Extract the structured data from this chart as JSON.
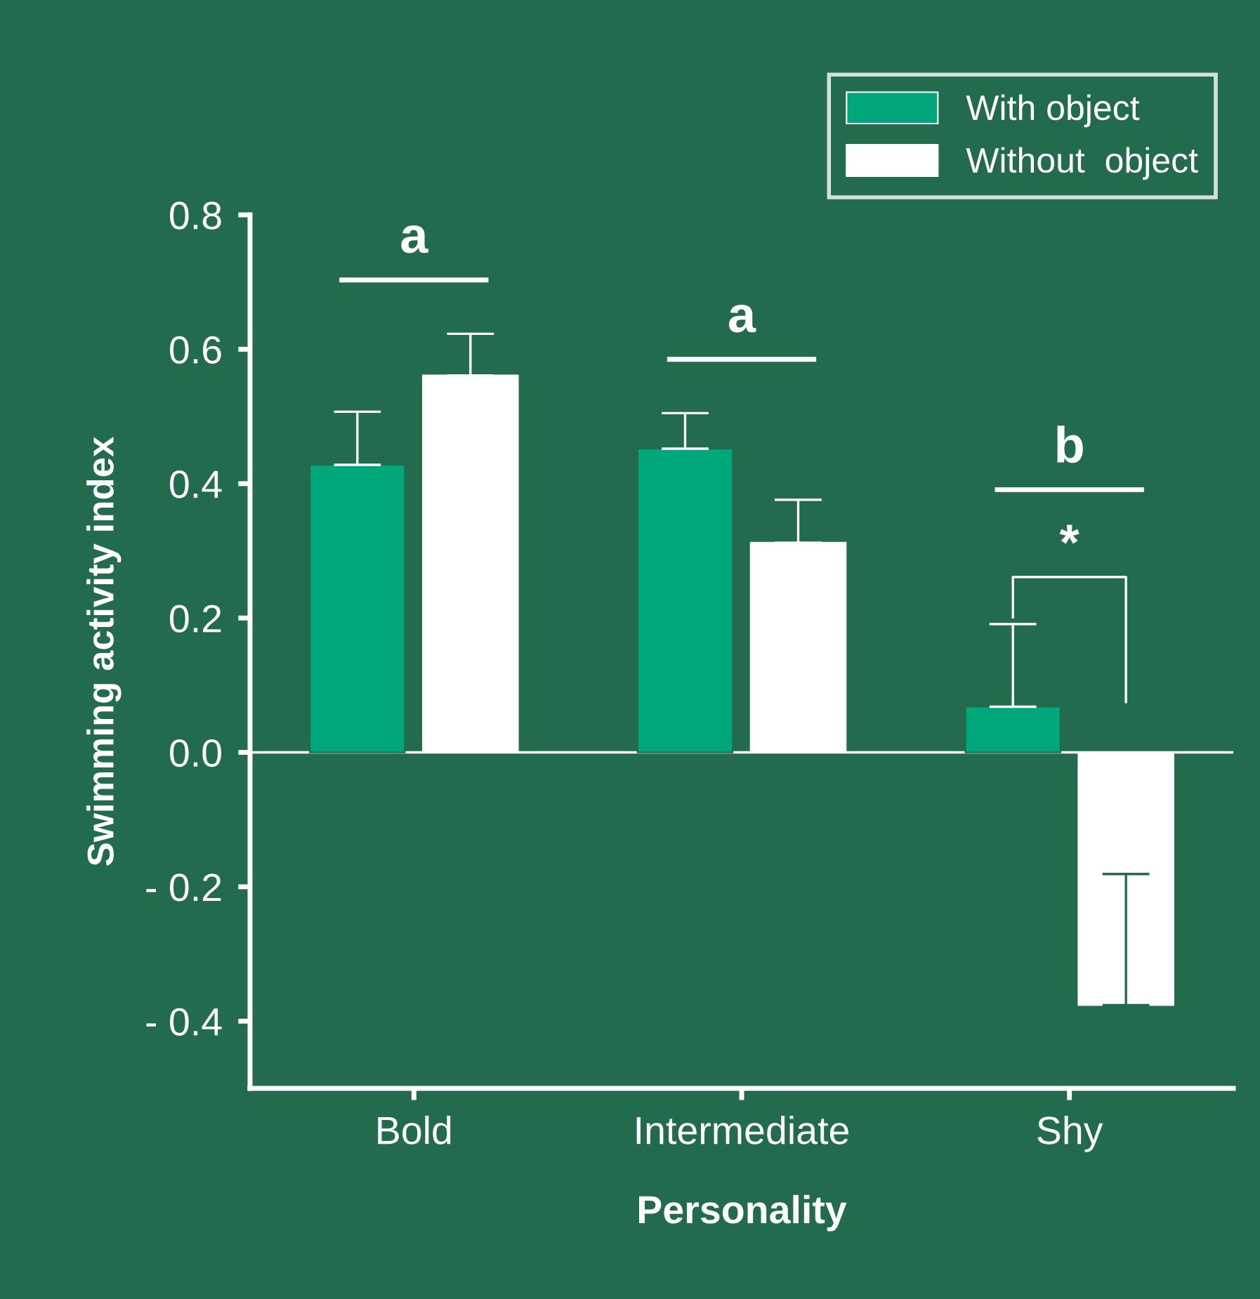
{
  "chart_data": {
    "type": "bar",
    "xlabel": "Personality",
    "ylabel": "Swimming activity index",
    "categories": [
      "Bold",
      "Intermediate",
      "Shy"
    ],
    "series": [
      {
        "name": "With object",
        "color": "#00a77b",
        "values": [
          0.428,
          0.452,
          0.068
        ],
        "errors": [
          [
            0.428,
            0.507
          ],
          [
            0.452,
            0.505
          ],
          [
            0.068,
            0.191
          ]
        ]
      },
      {
        "name": "Without  object",
        "color": "#ffffff",
        "values": [
          0.561,
          0.312,
          -0.376
        ],
        "errors": [
          [
            0.561,
            0.623
          ],
          [
            0.312,
            0.376
          ],
          [
            -0.376,
            -0.181
          ]
        ]
      }
    ],
    "ylim": [
      -0.5,
      0.8
    ],
    "yticks": [
      {
        "value": -0.4,
        "label": "- 0.4"
      },
      {
        "value": -0.2,
        "label": "- 0.2"
      },
      {
        "value": 0.0,
        "label": "0.0"
      },
      {
        "value": 0.2,
        "label": "0.2"
      },
      {
        "value": 0.4,
        "label": "0.4"
      },
      {
        "value": 0.6,
        "label": "0.6"
      },
      {
        "value": 0.8,
        "label": "0.8"
      }
    ],
    "ref_lines": [
      {
        "axis": "y",
        "value": 0.0,
        "color": "#ffffff"
      }
    ],
    "annotations": [
      "a",
      "a",
      "b",
      "*"
    ],
    "grid": false,
    "legend": "top right"
  }
}
